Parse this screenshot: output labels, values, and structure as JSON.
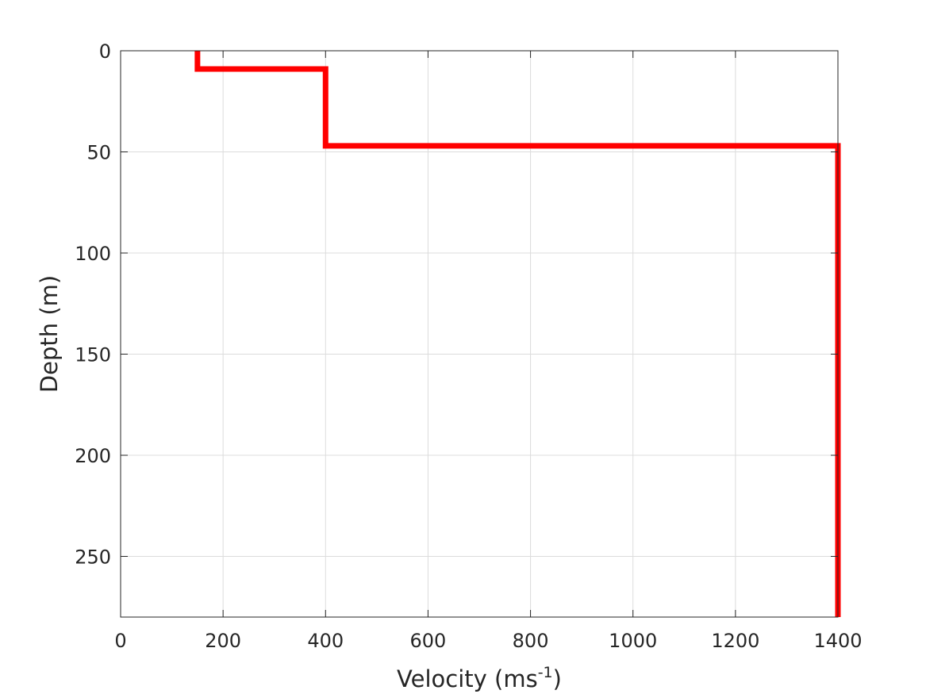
{
  "chart_data": {
    "type": "line",
    "title": "",
    "xlabel_main": "Velocity (ms",
    "xlabel_sup": "-1",
    "xlabel_end": ")",
    "ylabel": "Depth (m)",
    "xlim": [
      0,
      1400
    ],
    "ylim": [
      0,
      280
    ],
    "y_reversed": true,
    "grid": true,
    "x_ticks": [
      0,
      200,
      400,
      600,
      800,
      1000,
      1200,
      1400
    ],
    "y_ticks": [
      0,
      50,
      100,
      150,
      200,
      250
    ],
    "x_tick_labels": [
      "0",
      "200",
      "400",
      "600",
      "800",
      "1000",
      "1200",
      "1400"
    ],
    "y_tick_labels": [
      "0",
      "50",
      "100",
      "150",
      "200",
      "250"
    ],
    "series": [
      {
        "color": "#ff0000",
        "x": [
          150,
          150,
          400,
          400,
          1400,
          1400
        ],
        "y": [
          0,
          9,
          9,
          47,
          47,
          280
        ]
      }
    ]
  }
}
